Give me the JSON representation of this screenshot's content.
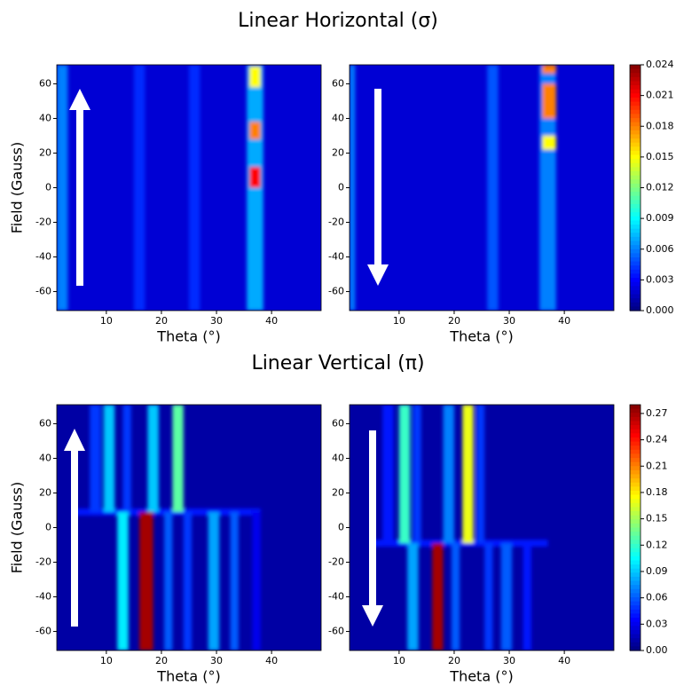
{
  "row_titles": [
    "Linear Horizontal (σ)",
    "Linear Vertical (π)"
  ],
  "chart_data": [
    {
      "type": "heatmap",
      "x_label": "Theta (°)",
      "y_label": "Field (Gauss)",
      "xlim": [
        1,
        49
      ],
      "ylim": [
        -71,
        71
      ],
      "xticks": [
        10,
        20,
        30,
        40
      ],
      "yticks": [
        -60,
        -40,
        -20,
        0,
        20,
        40,
        60
      ],
      "zlim": [
        0,
        0.024
      ],
      "background": 0.002,
      "stripes": [
        {
          "x0": 1,
          "x1": 3,
          "y0": -71,
          "y1": 71,
          "value": 0.006
        },
        {
          "x0": 15,
          "x1": 17,
          "y0": -71,
          "y1": 71,
          "value": 0.004
        },
        {
          "x0": 25,
          "x1": 27,
          "y0": -71,
          "y1": 71,
          "value": 0.004
        },
        {
          "x0": 35.5,
          "x1": 38.5,
          "y0": -71,
          "y1": 71,
          "value": 0.007
        },
        {
          "x0": 36,
          "x1": 38,
          "y0": 0,
          "y1": 12,
          "value": 0.021
        },
        {
          "x0": 36,
          "x1": 38,
          "y0": 28,
          "y1": 38,
          "value": 0.018
        },
        {
          "x0": 36,
          "x1": 38,
          "y0": 58,
          "y1": 70,
          "value": 0.015
        }
      ]
    },
    {
      "type": "heatmap",
      "x_label": "Theta (°)",
      "xlim": [
        1,
        49
      ],
      "ylim": [
        -71,
        71
      ],
      "xticks": [
        10,
        20,
        30,
        40
      ],
      "yticks": [
        -60,
        -40,
        -20,
        0,
        20,
        40,
        60
      ],
      "zlim": [
        0,
        0.024
      ],
      "background": 0.002,
      "zticks": [
        {
          "value": 0,
          "label": "0.000"
        },
        0.003,
        0.006,
        0.009,
        0.012,
        0.015,
        0.018,
        0.021,
        0.024
      ],
      "stripes": [
        {
          "x0": 1,
          "x1": 2,
          "y0": -71,
          "y1": 71,
          "value": 0.006
        },
        {
          "x0": 26,
          "x1": 28,
          "y0": -71,
          "y1": 71,
          "value": 0.005
        },
        {
          "x0": 35.5,
          "x1": 38.5,
          "y0": -71,
          "y1": 71,
          "value": 0.006
        },
        {
          "x0": 36,
          "x1": 38.5,
          "y0": 22,
          "y1": 30,
          "value": 0.015
        },
        {
          "x0": 36,
          "x1": 38.5,
          "y0": 40,
          "y1": 60,
          "value": 0.018
        },
        {
          "x0": 36,
          "x1": 38.5,
          "y0": 66,
          "y1": 71,
          "value": 0.018
        }
      ]
    },
    {
      "type": "heatmap",
      "x_label": "Theta (°)",
      "y_label": "Field (Gauss)",
      "xlim": [
        1,
        49
      ],
      "ylim": [
        -71,
        71
      ],
      "xticks": [
        10,
        20,
        30,
        40
      ],
      "yticks": [
        -60,
        -40,
        -20,
        0,
        20,
        40,
        60
      ],
      "zlim": [
        0,
        0.28
      ],
      "background": 0.01,
      "stripes": [
        {
          "x0": 4,
          "x1": 38,
          "y0": 7,
          "y1": 11,
          "value": 0.04
        },
        {
          "x0": 7,
          "x1": 9,
          "y0": 9,
          "y1": 71,
          "value": 0.05
        },
        {
          "x0": 9.5,
          "x1": 11.5,
          "y0": 9,
          "y1": 71,
          "value": 0.09
        },
        {
          "x0": 13,
          "x1": 14.5,
          "y0": 9,
          "y1": 71,
          "value": 0.05
        },
        {
          "x0": 17.5,
          "x1": 19.5,
          "y0": 9,
          "y1": 71,
          "value": 0.09
        },
        {
          "x0": 22,
          "x1": 24,
          "y0": 9,
          "y1": 71,
          "value": 0.13
        },
        {
          "x0": 12,
          "x1": 14,
          "y0": -71,
          "y1": 9,
          "value": 0.1
        },
        {
          "x0": 16,
          "x1": 18.5,
          "y0": -71,
          "y1": 9,
          "value": 0.27
        },
        {
          "x0": 20.5,
          "x1": 22,
          "y0": -71,
          "y1": 9,
          "value": 0.06
        },
        {
          "x0": 24,
          "x1": 25.5,
          "y0": -71,
          "y1": 9,
          "value": 0.05
        },
        {
          "x0": 28.5,
          "x1": 30.5,
          "y0": -71,
          "y1": 9,
          "value": 0.08
        },
        {
          "x0": 32.5,
          "x1": 34,
          "y0": -71,
          "y1": 9,
          "value": 0.06
        },
        {
          "x0": 36.5,
          "x1": 38,
          "y0": -71,
          "y1": 9,
          "value": 0.03
        }
      ]
    },
    {
      "type": "heatmap",
      "x_label": "Theta (°)",
      "xlim": [
        1,
        49
      ],
      "ylim": [
        -71,
        71
      ],
      "xticks": [
        10,
        20,
        30,
        40
      ],
      "yticks": [
        -60,
        -40,
        -20,
        0,
        20,
        40,
        60
      ],
      "zlim": [
        0,
        0.28
      ],
      "background": 0.01,
      "zticks": [
        {
          "value": 0,
          "label": "0.00"
        },
        0.03,
        0.06,
        0.09,
        0.12,
        0.15,
        0.18,
        0.21,
        0.24,
        0.27
      ],
      "stripes": [
        {
          "x0": 5,
          "x1": 37,
          "y0": -11,
          "y1": -7,
          "value": 0.04
        },
        {
          "x0": 7,
          "x1": 9,
          "y0": -9,
          "y1": 71,
          "value": 0.04
        },
        {
          "x0": 10,
          "x1": 12,
          "y0": -9,
          "y1": 71,
          "value": 0.12
        },
        {
          "x0": 12.5,
          "x1": 14,
          "y0": -9,
          "y1": 71,
          "value": 0.05
        },
        {
          "x0": 18,
          "x1": 20,
          "y0": -9,
          "y1": 71,
          "value": 0.07
        },
        {
          "x0": 21.5,
          "x1": 23.5,
          "y0": -9,
          "y1": 71,
          "value": 0.17
        },
        {
          "x0": 24,
          "x1": 25.5,
          "y0": -9,
          "y1": 71,
          "value": 0.05
        },
        {
          "x0": 11.5,
          "x1": 13.5,
          "y0": -71,
          "y1": -9,
          "value": 0.08
        },
        {
          "x0": 16,
          "x1": 18,
          "y0": -71,
          "y1": -9,
          "value": 0.27
        },
        {
          "x0": 19.5,
          "x1": 21,
          "y0": -71,
          "y1": -9,
          "value": 0.06
        },
        {
          "x0": 25.5,
          "x1": 27,
          "y0": -71,
          "y1": -9,
          "value": 0.05
        },
        {
          "x0": 28.5,
          "x1": 30.5,
          "y0": -71,
          "y1": -9,
          "value": 0.06
        },
        {
          "x0": 32.5,
          "x1": 34,
          "y0": -71,
          "y1": -9,
          "value": 0.04
        }
      ]
    }
  ]
}
